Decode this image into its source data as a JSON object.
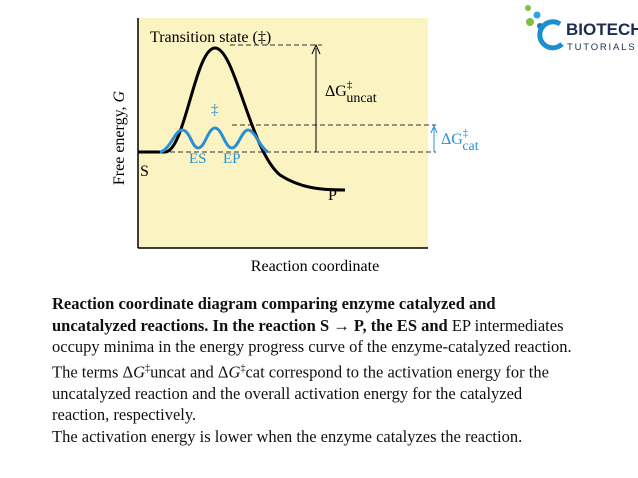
{
  "logo": {
    "brand": "BIOTECH",
    "sub": "TUTORIALS"
  },
  "diagram": {
    "transition_state": "Transition state (‡)",
    "y_label": [
      "Free energy, ",
      "G"
    ],
    "x_label": "Reaction coordinate",
    "dg_uncat": {
      "symbol": "ΔG",
      "sup": "‡",
      "sub": "uncat"
    },
    "dg_cat": {
      "symbol": "ΔG",
      "sup": "‡",
      "sub": "cat"
    },
    "catalyzed_ts": "‡",
    "es": "ES",
    "ep": "EP",
    "s": "S",
    "p": "P"
  },
  "caption": {
    "lines": [
      [
        {
          "text": "Reaction coordinate diagram comparing enzyme catalyzed and",
          "b": true
        }
      ],
      [
        {
          "text": "uncatalyzed reactions. In the reaction S → P, the ES and ",
          "b": true
        },
        {
          "text": "EP intermediates"
        }
      ],
      [
        {
          "text": "occupy minima in the energy progress curve of the enzyme-catalyzed reaction."
        }
      ],
      [
        {
          "text": "The terms Δ"
        },
        {
          "text": "G",
          "i": true
        },
        {
          "text": "‡",
          "sup": true
        },
        {
          "text": "uncat and Δ"
        },
        {
          "text": "G",
          "i": true
        },
        {
          "text": "‡",
          "sup": true
        },
        {
          "text": "cat correspond to the activation energy for the"
        }
      ],
      [
        {
          "text": "uncatalyzed reaction and the overall activation energy for the catalyzed"
        }
      ],
      [
        {
          "text": "reaction, respectively."
        }
      ],
      [
        {
          "text": "The activation energy is lower when the enzyme catalyzes the reaction."
        }
      ]
    ]
  }
}
